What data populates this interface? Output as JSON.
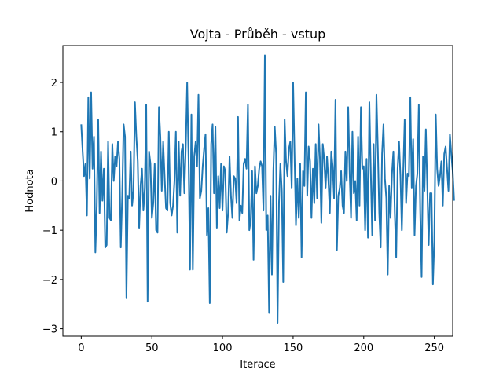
{
  "chart_data": {
    "type": "line",
    "title": "Vojta - Průběh - vstup",
    "xlabel": "Iterace",
    "ylabel": "Hodnota",
    "xlim": [
      -13,
      263
    ],
    "ylim": [
      -3.15,
      2.75
    ],
    "x_ticks": [
      0,
      50,
      100,
      150,
      200,
      250
    ],
    "y_ticks": [
      -3,
      -2,
      -1,
      0,
      1,
      2
    ],
    "grid": false,
    "color": "#1f77b4",
    "series": [
      {
        "x_start": 0,
        "values": [
          1.15,
          0.6,
          0.1,
          0.35,
          -0.7,
          1.7,
          0.05,
          1.8,
          0.25,
          0.9,
          -1.45,
          -0.5,
          1.25,
          -0.65,
          0.6,
          -0.4,
          0.25,
          -1.35,
          -1.3,
          0.8,
          -0.75,
          -0.8,
          0.75,
          0.0,
          0.5,
          0.3,
          0.8,
          0.45,
          -1.35,
          -0.3,
          1.15,
          0.9,
          -2.38,
          -0.3,
          -0.35,
          0.6,
          -0.5,
          -0.2,
          1.6,
          0.9,
          0.4,
          -0.95,
          -0.1,
          0.25,
          -0.6,
          -0.15,
          1.55,
          -2.45,
          0.6,
          0.35,
          -0.75,
          -0.45,
          0.35,
          -1.0,
          -1.05,
          1.5,
          0.9,
          -0.2,
          0.8,
          0.1,
          -0.55,
          -0.6,
          1.0,
          -0.45,
          -0.7,
          -0.5,
          0.0,
          1.0,
          -1.05,
          0.8,
          -0.3,
          0.6,
          0.75,
          -0.25,
          0.7,
          2.0,
          0.45,
          -1.8,
          1.35,
          -1.8,
          0.5,
          0.8,
          0.3,
          1.75,
          -0.35,
          -0.2,
          0.3,
          0.65,
          0.95,
          -1.1,
          -0.55,
          -2.48,
          0.75,
          1.15,
          -0.25,
          1.1,
          -0.95,
          0.1,
          -0.55,
          0.35,
          -0.6,
          0.3,
          0.2,
          -1.05,
          -0.65,
          0.5,
          -0.3,
          -0.75,
          0.1,
          0.05,
          -0.45,
          1.3,
          -0.8,
          -0.5,
          -0.65,
          0.35,
          0.45,
          0.25,
          1.55,
          -1.0,
          -0.8,
          0.2,
          -1.6,
          0.3,
          -0.25,
          -0.1,
          0.25,
          0.4,
          0.3,
          -0.6,
          2.55,
          -1.0,
          -0.7,
          -2.68,
          -0.3,
          -1.9,
          0.2,
          1.1,
          0.55,
          -2.88,
          -0.45,
          0.35,
          -0.2,
          -2.05,
          1.25,
          0.4,
          0.1,
          0.65,
          0.8,
          -0.15,
          2.0,
          0.55,
          -0.9,
          0.05,
          -0.75,
          0.35,
          -1.55,
          0.2,
          -0.1,
          1.8,
          -0.3,
          0.7,
          0.4,
          -0.75,
          0.25,
          -0.45,
          0.75,
          -0.35,
          1.15,
          0.45,
          -0.85,
          0.75,
          0.45,
          -0.15,
          0.5,
          0.0,
          -0.65,
          0.6,
          0.3,
          -0.35,
          1.65,
          -1.4,
          -0.3,
          -0.15,
          0.2,
          -0.5,
          -0.65,
          0.6,
          0.0,
          1.5,
          0.2,
          -0.75,
          1.0,
          -0.25,
          0.0,
          -0.8,
          0.9,
          -0.5,
          1.5,
          0.25,
          0.3,
          -1.0,
          0.45,
          -1.15,
          1.6,
          0.2,
          -1.1,
          0.75,
          -0.8,
          1.75,
          0.65,
          -0.65,
          -1.35,
          0.55,
          1.15,
          0.05,
          -0.35,
          -1.9,
          -0.1,
          -0.75,
          0.15,
          0.6,
          -0.65,
          -1.55,
          0.25,
          0.8,
          0.1,
          -1.0,
          0.2,
          1.25,
          -0.45,
          0.15,
          0.1,
          1.7,
          -0.15,
          0.85,
          -1.1,
          -0.1,
          0.15,
          1.55,
          -0.6,
          -1.95,
          0.5,
          -0.2,
          1.05,
          -0.1,
          -1.3,
          -0.25,
          -0.25,
          -2.1,
          -1.2,
          1.35,
          0.25,
          -0.1,
          0.1,
          0.4,
          -0.5,
          0.55,
          0.7,
          0.25,
          -0.2,
          0.95,
          0.55,
          0.2,
          -0.4
        ]
      }
    ]
  }
}
